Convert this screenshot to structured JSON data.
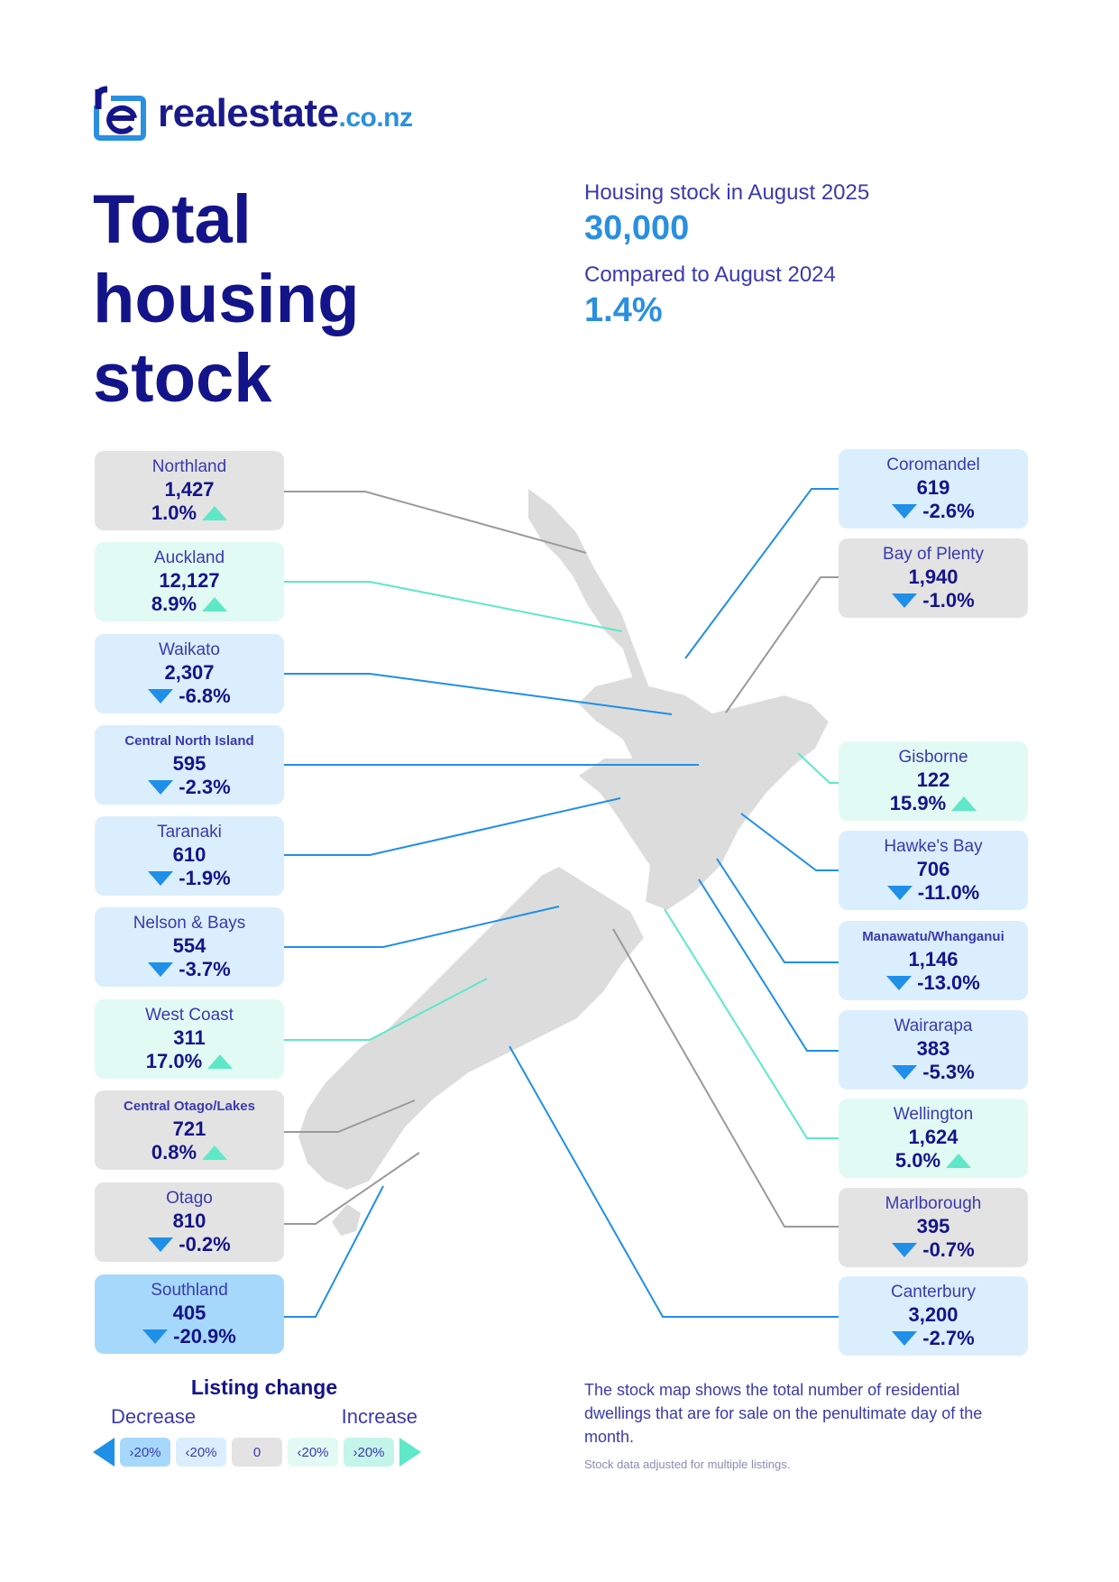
{
  "brand": {
    "name": "realestate",
    "tld": ".co.nz"
  },
  "title": [
    "Total",
    "housing",
    "stock"
  ],
  "summary": {
    "stock_label": "Housing stock in August 2025",
    "stock_value": "30,000",
    "compare_label": "Compared to August 2024",
    "compare_value": "1.4%"
  },
  "regions": [
    {
      "name": "Northland",
      "value": "1,427",
      "change": "1.0%",
      "direction": "up"
    },
    {
      "name": "Auckland",
      "value": "12,127",
      "change": "8.9%",
      "direction": "up"
    },
    {
      "name": "Waikato",
      "value": "2,307",
      "change": "-6.8%",
      "direction": "down"
    },
    {
      "name": "Central North Island",
      "value": "595",
      "change": "-2.3%",
      "direction": "down"
    },
    {
      "name": "Taranaki",
      "value": "610",
      "change": "-1.9%",
      "direction": "down"
    },
    {
      "name": "Nelson & Bays",
      "value": "554",
      "change": "-3.7%",
      "direction": "down"
    },
    {
      "name": "West Coast",
      "value": "311",
      "change": "17.0%",
      "direction": "up"
    },
    {
      "name": "Central Otago/Lakes",
      "value": "721",
      "change": "0.8%",
      "direction": "up"
    },
    {
      "name": "Otago",
      "value": "810",
      "change": "-0.2%",
      "direction": "down"
    },
    {
      "name": "Southland",
      "value": "405",
      "change": "-20.9%",
      "direction": "down"
    },
    {
      "name": "Coromandel",
      "value": "619",
      "change": "-2.6%",
      "direction": "down"
    },
    {
      "name": "Bay of Plenty",
      "value": "1,940",
      "change": "-1.0%",
      "direction": "down"
    },
    {
      "name": "Gisborne",
      "value": "122",
      "change": "15.9%",
      "direction": "up"
    },
    {
      "name": "Hawke's Bay",
      "value": "706",
      "change": "-11.0%",
      "direction": "down"
    },
    {
      "name": "Manawatu/Whanganui",
      "value": "1,146",
      "change": "-13.0%",
      "direction": "down"
    },
    {
      "name": "Wairarapa",
      "value": "383",
      "change": "-5.3%",
      "direction": "down"
    },
    {
      "name": "Wellington",
      "value": "1,624",
      "change": "5.0%",
      "direction": "up"
    },
    {
      "name": "Marlborough",
      "value": "395",
      "change": "-0.7%",
      "direction": "down"
    },
    {
      "name": "Canterbury",
      "value": "3,200",
      "change": "-2.7%",
      "direction": "down"
    }
  ],
  "legend": {
    "title": "Listing change",
    "decrease": "Decrease",
    "increase": "Increase",
    "chips": [
      "›20%",
      "‹20%",
      "0",
      "‹20%",
      "›20%"
    ]
  },
  "note": {
    "text": "The stock map shows the total number of residential dwellings that are for sale on the penultimate day of the month.",
    "footnote": "Stock data adjusted for multiple listings."
  },
  "colors": {
    "navy": "#14148a",
    "blue": "#2a8fe0",
    "decrease_strong": "#a6d8fb",
    "decrease_mild": "#dbeefd",
    "neutral": "#e3e3e3",
    "increase_mild": "#e2faf4",
    "increase_strong": "#c4f5ea"
  }
}
